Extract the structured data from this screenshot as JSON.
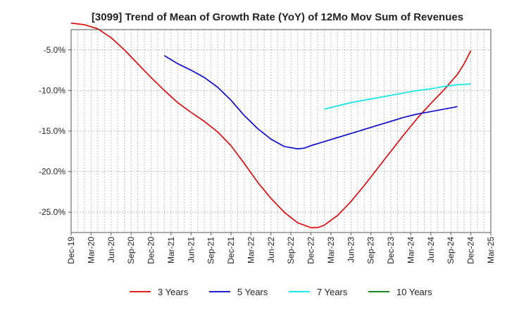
{
  "chart_data": {
    "type": "line",
    "title": "[3099]  Trend of Mean of Growth Rate (YoY) of 12Mo Mov Sum of Revenues",
    "xlabel": "",
    "ylabel": "",
    "ylim": [
      -27.5,
      -2.5
    ],
    "y_ticks": [
      -5,
      -10,
      -15,
      -20,
      -25
    ],
    "y_tick_labels": [
      "-5.0%",
      "-10.0%",
      "-15.0%",
      "-20.0%",
      "-25.0%"
    ],
    "x_range": [
      0,
      63
    ],
    "x_ticks": [
      0,
      3,
      6,
      9,
      12,
      15,
      18,
      21,
      24,
      27,
      30,
      33,
      36,
      39,
      42,
      45,
      48,
      51,
      54,
      57,
      60,
      63
    ],
    "x_tick_labels": [
      "Dec-19",
      "Mar-20",
      "Jun-20",
      "Sep-20",
      "Dec-20",
      "Mar-21",
      "Jun-21",
      "Sep-21",
      "Dec-21",
      "Mar-22",
      "Jun-22",
      "Sep-22",
      "Dec-22",
      "Mar-23",
      "Jun-23",
      "Sep-23",
      "Dec-23",
      "Mar-24",
      "Jun-24",
      "Sep-24",
      "Dec-24",
      "Mar-25"
    ],
    "grid": true,
    "legend_position": "bottom",
    "series": [
      {
        "name": "3 Years",
        "color": "#dd0000",
        "points": [
          [
            0,
            -1.7
          ],
          [
            2,
            -1.9
          ],
          [
            4,
            -2.4
          ],
          [
            6,
            -3.5
          ],
          [
            8,
            -5.0
          ],
          [
            10,
            -6.7
          ],
          [
            12,
            -8.4
          ],
          [
            14,
            -10.0
          ],
          [
            16,
            -11.5
          ],
          [
            18,
            -12.7
          ],
          [
            20,
            -13.8
          ],
          [
            22,
            -15.1
          ],
          [
            24,
            -16.8
          ],
          [
            26,
            -19.0
          ],
          [
            28,
            -21.3
          ],
          [
            30,
            -23.3
          ],
          [
            32,
            -25.0
          ],
          [
            34,
            -26.3
          ],
          [
            36,
            -26.9
          ],
          [
            37,
            -26.9
          ],
          [
            38,
            -26.6
          ],
          [
            40,
            -25.4
          ],
          [
            42,
            -23.7
          ],
          [
            44,
            -21.7
          ],
          [
            46,
            -19.6
          ],
          [
            48,
            -17.5
          ],
          [
            50,
            -15.4
          ],
          [
            52,
            -13.4
          ],
          [
            54,
            -11.6
          ],
          [
            56,
            -9.9
          ],
          [
            58,
            -8.0
          ],
          [
            59,
            -6.7
          ],
          [
            60,
            -5.1
          ]
        ]
      },
      {
        "name": "5 Years",
        "color": "#0000cc",
        "points": [
          [
            14,
            -5.7
          ],
          [
            16,
            -6.7
          ],
          [
            18,
            -7.5
          ],
          [
            20,
            -8.4
          ],
          [
            22,
            -9.6
          ],
          [
            24,
            -11.2
          ],
          [
            26,
            -13.1
          ],
          [
            28,
            -14.7
          ],
          [
            30,
            -16.0
          ],
          [
            32,
            -16.9
          ],
          [
            34,
            -17.2
          ],
          [
            35,
            -17.1
          ],
          [
            36,
            -16.8
          ],
          [
            38,
            -16.3
          ],
          [
            40,
            -15.8
          ],
          [
            42,
            -15.3
          ],
          [
            44,
            -14.8
          ],
          [
            46,
            -14.3
          ],
          [
            48,
            -13.8
          ],
          [
            50,
            -13.3
          ],
          [
            52,
            -12.9
          ],
          [
            54,
            -12.6
          ],
          [
            56,
            -12.3
          ],
          [
            58,
            -12.0
          ]
        ]
      },
      {
        "name": "7 Years",
        "color": "#00e5e5",
        "points": [
          [
            38,
            -12.3
          ],
          [
            40,
            -11.9
          ],
          [
            42,
            -11.5
          ],
          [
            44,
            -11.2
          ],
          [
            46,
            -10.9
          ],
          [
            48,
            -10.6
          ],
          [
            50,
            -10.3
          ],
          [
            52,
            -10.0
          ],
          [
            54,
            -9.8
          ],
          [
            56,
            -9.5
          ],
          [
            58,
            -9.3
          ],
          [
            60,
            -9.2
          ]
        ]
      },
      {
        "name": "10 Years",
        "color": "#007700",
        "points": []
      }
    ]
  }
}
